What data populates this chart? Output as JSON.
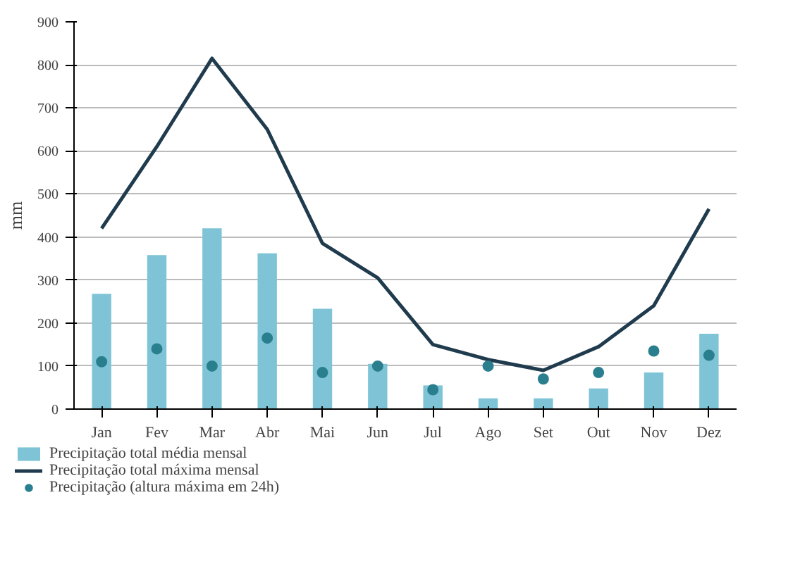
{
  "chart_data": {
    "type": "bar",
    "ylabel": "mm",
    "categories": [
      "Jan",
      "Fev",
      "Mar",
      "Abr",
      "Mai",
      "Jun",
      "Jul",
      "Ago",
      "Set",
      "Out",
      "Nov",
      "Dez"
    ],
    "ylim": [
      0,
      900
    ],
    "yticks": [
      0,
      100,
      200,
      300,
      400,
      500,
      600,
      700,
      800,
      900
    ],
    "grid": "y",
    "legend": "bottom",
    "series": [
      {
        "name": "Precipitação total média mensal",
        "color": "#7ec4d6",
        "values": [
          268,
          358,
          420,
          362,
          233,
          105,
          55,
          25,
          25,
          48,
          85,
          175
        ]
      },
      {
        "name": "Precipitação total máxima mensal",
        "type": "line",
        "color": "#1f3b4d",
        "values": [
          420,
          610,
          815,
          650,
          385,
          305,
          150,
          115,
          90,
          145,
          240,
          465
        ]
      },
      {
        "name": "Precipitação (altura máxima em 24h)",
        "type": "scatter",
        "color": "#2a7f8f",
        "values": [
          110,
          140,
          100,
          165,
          85,
          100,
          45,
          100,
          70,
          85,
          135,
          125
        ]
      }
    ]
  }
}
